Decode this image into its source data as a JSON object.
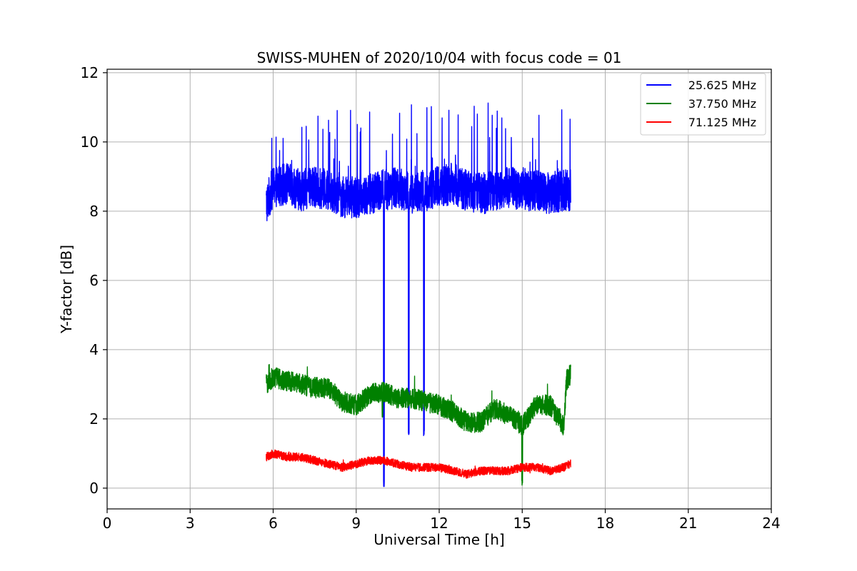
{
  "chart_data": {
    "type": "line",
    "title": "SWISS-MUHEN of 2020/10/04 with focus code = 01",
    "xlabel": "Universal Time [h]",
    "ylabel": "Y-factor [dB]",
    "xlim": [
      0,
      24
    ],
    "ylim": [
      -0.6,
      12.1
    ],
    "xticks": [
      "0",
      "3",
      "6",
      "9",
      "12",
      "15",
      "18",
      "21",
      "24"
    ],
    "yticks": [
      "0",
      "2",
      "4",
      "6",
      "8",
      "10",
      "12"
    ],
    "grid": true,
    "legend_position": "upper-right",
    "series": [
      {
        "name": "25.625 MHz",
        "color": "#0000ff",
        "t_start": 5.75,
        "t_end": 16.75,
        "baseline": 8.6,
        "noise_amplitude": 0.6,
        "spike_max": 11.4,
        "dips": [
          {
            "x": 10.0,
            "y": 0.0
          },
          {
            "x": 10.9,
            "y": 1.5
          },
          {
            "x": 11.45,
            "y": 1.5
          }
        ],
        "points": [
          [
            5.75,
            8.2
          ],
          [
            6.0,
            8.7
          ],
          [
            6.5,
            8.8
          ],
          [
            7.0,
            8.6
          ],
          [
            7.5,
            8.7
          ],
          [
            8.0,
            8.6
          ],
          [
            8.5,
            8.4
          ],
          [
            9.0,
            8.4
          ],
          [
            9.5,
            8.5
          ],
          [
            10.0,
            8.6
          ],
          [
            10.5,
            8.7
          ],
          [
            11.0,
            8.5
          ],
          [
            11.5,
            8.6
          ],
          [
            12.0,
            8.7
          ],
          [
            12.5,
            8.8
          ],
          [
            13.0,
            8.6
          ],
          [
            13.5,
            8.5
          ],
          [
            14.0,
            8.6
          ],
          [
            14.5,
            8.7
          ],
          [
            15.0,
            8.6
          ],
          [
            15.5,
            8.6
          ],
          [
            16.0,
            8.5
          ],
          [
            16.5,
            8.6
          ],
          [
            16.75,
            8.6
          ]
        ]
      },
      {
        "name": "37.750 MHz",
        "color": "#008000",
        "t_start": 5.75,
        "t_end": 16.75,
        "noise_amplitude": 0.3,
        "dips": [
          {
            "x": 9.95,
            "y": 2.0
          },
          {
            "x": 15.0,
            "y": 0.0
          }
        ],
        "points": [
          [
            5.75,
            3.0
          ],
          [
            6.0,
            3.2
          ],
          [
            6.5,
            3.1
          ],
          [
            7.0,
            3.0
          ],
          [
            7.5,
            2.9
          ],
          [
            8.0,
            2.9
          ],
          [
            8.5,
            2.5
          ],
          [
            9.0,
            2.4
          ],
          [
            9.5,
            2.7
          ],
          [
            10.0,
            2.8
          ],
          [
            10.5,
            2.6
          ],
          [
            11.0,
            2.6
          ],
          [
            11.5,
            2.5
          ],
          [
            12.0,
            2.4
          ],
          [
            12.5,
            2.2
          ],
          [
            13.0,
            1.9
          ],
          [
            13.5,
            1.9
          ],
          [
            14.0,
            2.3
          ],
          [
            14.5,
            2.1
          ],
          [
            15.0,
            1.8
          ],
          [
            15.5,
            2.4
          ],
          [
            16.0,
            2.4
          ],
          [
            16.5,
            1.8
          ],
          [
            16.6,
            3.1
          ],
          [
            16.75,
            3.3
          ]
        ]
      },
      {
        "name": "71.125 MHz",
        "color": "#ff0000",
        "t_start": 5.75,
        "t_end": 16.75,
        "noise_amplitude": 0.12,
        "points": [
          [
            5.75,
            0.9
          ],
          [
            6.0,
            1.0
          ],
          [
            6.5,
            0.9
          ],
          [
            7.0,
            0.9
          ],
          [
            7.5,
            0.8
          ],
          [
            8.0,
            0.7
          ],
          [
            8.5,
            0.6
          ],
          [
            9.0,
            0.7
          ],
          [
            9.5,
            0.8
          ],
          [
            10.0,
            0.8
          ],
          [
            10.5,
            0.7
          ],
          [
            11.0,
            0.6
          ],
          [
            11.5,
            0.6
          ],
          [
            12.0,
            0.6
          ],
          [
            12.5,
            0.5
          ],
          [
            13.0,
            0.4
          ],
          [
            13.5,
            0.5
          ],
          [
            14.0,
            0.5
          ],
          [
            14.5,
            0.5
          ],
          [
            15.0,
            0.6
          ],
          [
            15.5,
            0.6
          ],
          [
            16.0,
            0.5
          ],
          [
            16.5,
            0.6
          ],
          [
            16.75,
            0.7
          ]
        ]
      }
    ]
  }
}
